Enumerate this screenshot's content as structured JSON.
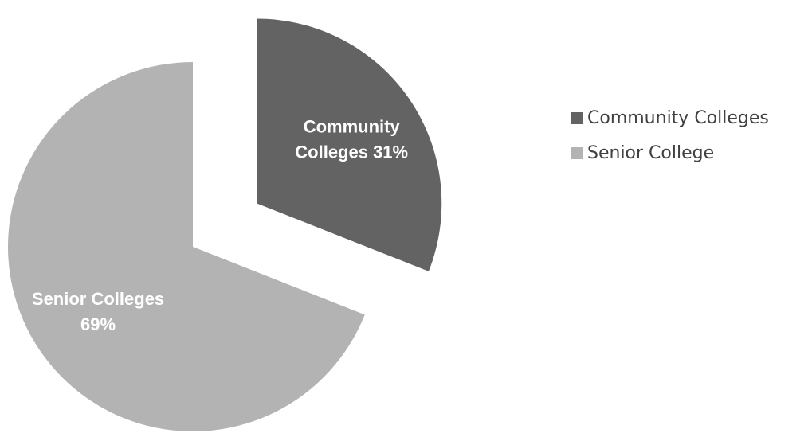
{
  "chart_data": {
    "type": "pie",
    "title": "",
    "slices": [
      {
        "category": "Community Colleges",
        "value": 31,
        "label_lines": [
          "Community",
          "Colleges 31%"
        ],
        "color": "#636363",
        "exploded": true
      },
      {
        "category": "Senior Colleges",
        "value": 69,
        "label_lines": [
          "Senior Colleges",
          "69%"
        ],
        "color": "#b3b3b3",
        "exploded": false
      }
    ],
    "legend": {
      "position": "right",
      "entries": [
        {
          "label": "Community Colleges",
          "color": "#636363"
        },
        {
          "label": "Senior College",
          "color": "#b3b3b3"
        }
      ]
    }
  }
}
